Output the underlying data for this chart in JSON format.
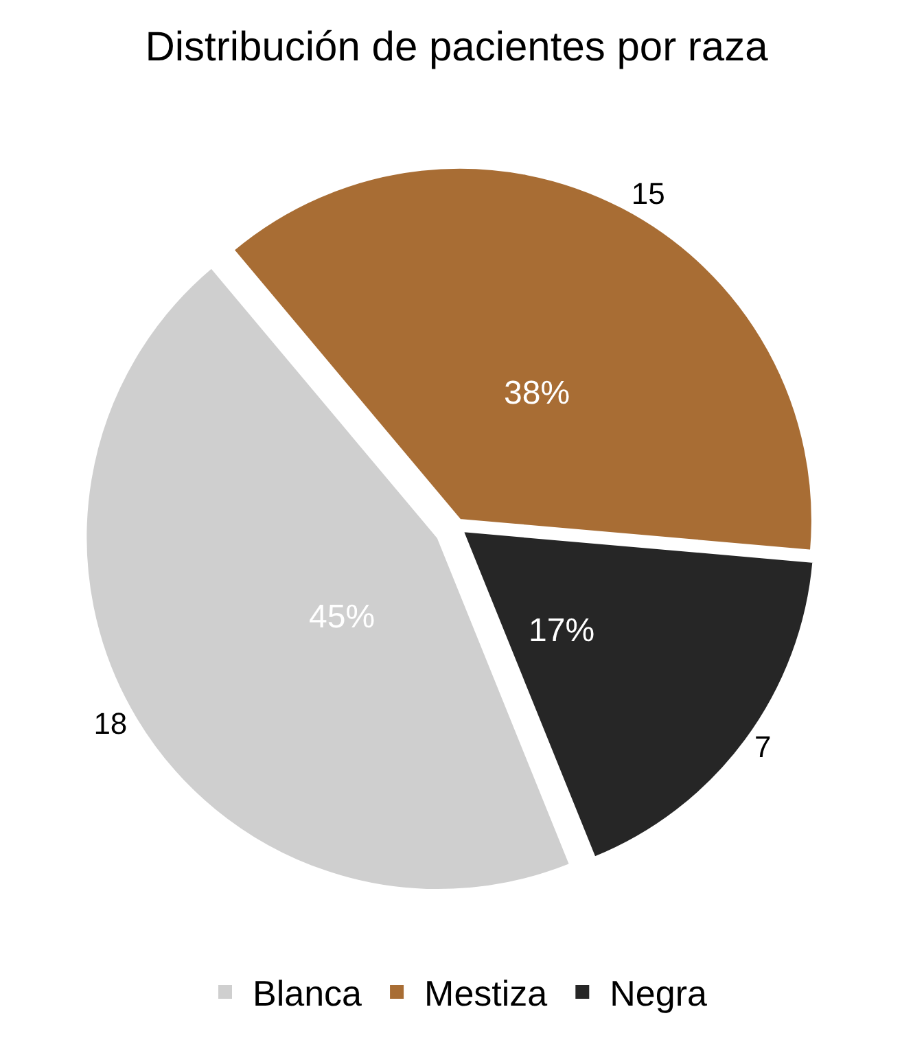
{
  "chart_data": {
    "type": "pie",
    "title": "Distribución de pacientes por raza",
    "categories": [
      "Blanca",
      "Mestiza",
      "Negra"
    ],
    "values": [
      18,
      15,
      7
    ],
    "colors": [
      "#cfcfcf",
      "#a86d34",
      "#262626"
    ],
    "data_labels": true,
    "annotations": [
      "45%",
      "38%",
      "17%"
    ],
    "legend": "bottom"
  }
}
